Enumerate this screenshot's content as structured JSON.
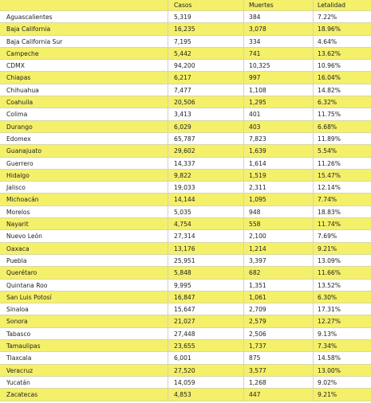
{
  "table": {
    "columns": [
      "Casos",
      "Muertes",
      "Letalidad"
    ],
    "rows": [
      [
        "Aguascalientes",
        "5,319",
        "384",
        "7.22%"
      ],
      [
        "Baja California",
        "16,235",
        "3,078",
        "18.96%"
      ],
      [
        "Baja California Sur",
        "7,195",
        "334",
        "4.64%"
      ],
      [
        "Campeche",
        "5,442",
        "741",
        "13.62%"
      ],
      [
        "CDMX",
        "94,200",
        "10,325",
        "10.96%"
      ],
      [
        "Chiapas",
        "6,217",
        "997",
        "16.04%"
      ],
      [
        "Chihuahua",
        "7,477",
        "1,108",
        "14.82%"
      ],
      [
        "Coahuila",
        "20,506",
        "1,295",
        "6.32%"
      ],
      [
        "Colima",
        "3,413",
        "401",
        "11.75%"
      ],
      [
        "Durango",
        "6,029",
        "403",
        "6.68%"
      ],
      [
        "Edomex",
        "65,787",
        "7,823",
        "11.89%"
      ],
      [
        "Guanajuato",
        "29,602",
        "1,639",
        "5.54%"
      ],
      [
        "Guerrero",
        "14,337",
        "1,614",
        "11.26%"
      ],
      [
        "Hidalgo",
        "9,822",
        "1,519",
        "15.47%"
      ],
      [
        "Jalisco",
        "19,033",
        "2,311",
        "12.14%"
      ],
      [
        "Michoacán",
        "14,144",
        "1,095",
        "7.74%"
      ],
      [
        "Morelos",
        "5,035",
        "948",
        "18.83%"
      ],
      [
        "Nayarit",
        "4,754",
        "558",
        "11.74%"
      ],
      [
        "Nuevo León",
        "27,314",
        "2,100",
        "7.69%"
      ],
      [
        "Oaxaca",
        "13,176",
        "1,214",
        "9.21%"
      ],
      [
        "Puebla",
        "25,951",
        "3,397",
        "13.09%"
      ],
      [
        "Querétaro",
        "5,848",
        "682",
        "11.66%"
      ],
      [
        "Quintana Roo",
        "9,995",
        "1,351",
        "13.52%"
      ],
      [
        "San Luis Potosí",
        "16,847",
        "1,061",
        "6.30%"
      ],
      [
        "Sinaloa",
        "15,647",
        "2,709",
        "17.31%"
      ],
      [
        "Sonora",
        "21,027",
        "2,579",
        "12.27%"
      ],
      [
        "Tabasco",
        "27,448",
        "2,506",
        "9.13%"
      ],
      [
        "Tamaulipas",
        "23,655",
        "1,737",
        "7.34%"
      ],
      [
        "Tlaxcala",
        "6,001",
        "875",
        "14.58%"
      ],
      [
        "Veracruz",
        "27,520",
        "3,577",
        "13.00%"
      ],
      [
        "Yucatán",
        "14,059",
        "1,268",
        "9.02%"
      ],
      [
        "Zacatecas",
        "4,853",
        "447",
        "9.21%"
      ]
    ]
  }
}
